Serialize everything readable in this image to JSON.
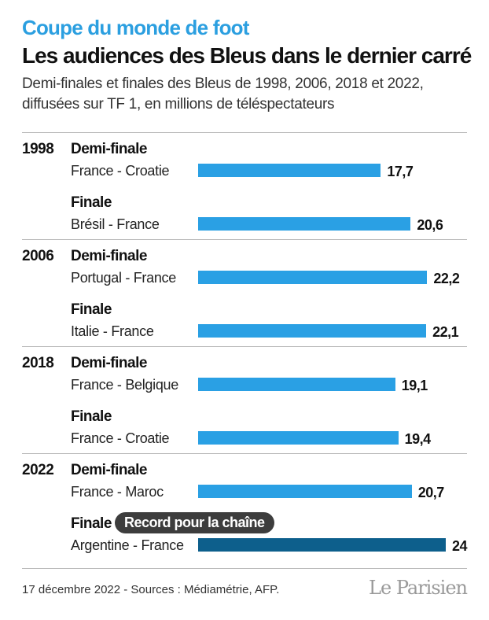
{
  "header": {
    "kicker": "Coupe du monde de foot",
    "title": "Les audiences des Bleus dans le dernier carré",
    "subtitle": "Demi-finales et finales des Bleus de 1998, 2006, 2018 et 2022, diffusées sur TF 1, en millions de téléspectateurs"
  },
  "chart_data": {
    "type": "bar",
    "orientation": "horizontal",
    "unit": "millions de téléspectateurs",
    "xlim": [
      0,
      24
    ],
    "grid": false,
    "groups": [
      {
        "year": "1998",
        "rows": [
          {
            "stage": "Demi-finale",
            "match": "France - Croatie",
            "value": 17.7,
            "label": "17,7"
          },
          {
            "stage": "Finale",
            "match": "Brésil - France",
            "value": 20.6,
            "label": "20,6"
          }
        ]
      },
      {
        "year": "2006",
        "rows": [
          {
            "stage": "Demi-finale",
            "match": "Portugal - France",
            "value": 22.2,
            "label": "22,2"
          },
          {
            "stage": "Finale",
            "match": "Italie - France",
            "value": 22.1,
            "label": "22,1"
          }
        ]
      },
      {
        "year": "2018",
        "rows": [
          {
            "stage": "Demi-finale",
            "match": "France - Belgique",
            "value": 19.1,
            "label": "19,1"
          },
          {
            "stage": "Finale",
            "match": "France - Croatie",
            "value": 19.4,
            "label": "19,4"
          }
        ]
      },
      {
        "year": "2022",
        "rows": [
          {
            "stage": "Demi-finale",
            "match": "France - Maroc",
            "value": 20.7,
            "label": "20,7"
          },
          {
            "stage": "Finale",
            "match": "Argentine - France",
            "value": 24,
            "label": "24",
            "highlight": true,
            "annotation": "Record pour la chaîne"
          }
        ]
      }
    ]
  },
  "colors": {
    "kicker": "#2b9fe0",
    "bar": "#2aa0e4",
    "bar_highlight": "#0d5f8c",
    "badge_bg": "#3d3d3d"
  },
  "footer": {
    "source": "17 décembre 2022 - Sources : Médiamétrie, AFP.",
    "logo": "Le Parisien"
  }
}
